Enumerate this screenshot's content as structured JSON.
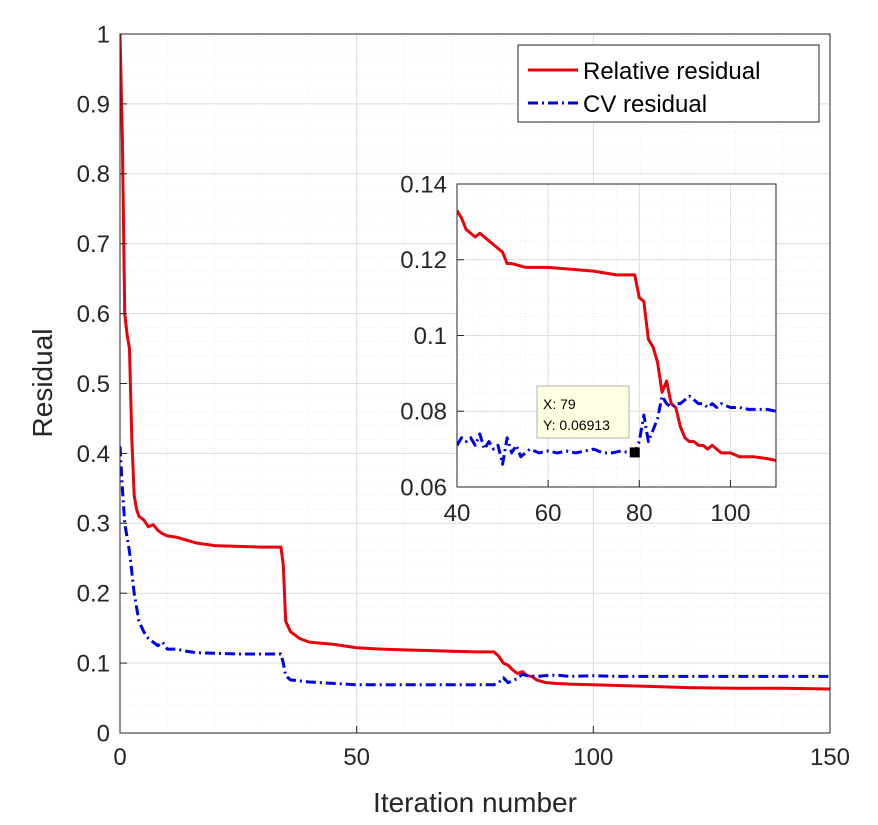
{
  "chart_data": [
    {
      "type": "line",
      "xlabel": "Iteration number",
      "ylabel": "Residual",
      "xlim": [
        0,
        150
      ],
      "ylim": [
        0,
        1
      ],
      "xticks": [
        0,
        50,
        100,
        150
      ],
      "xtick_labels": [
        "0",
        "50",
        "100",
        "150"
      ],
      "yticks": [
        0,
        0.1,
        0.2,
        0.3,
        0.4,
        0.5,
        0.6,
        0.7,
        0.8,
        0.9,
        1
      ],
      "ytick_labels": [
        "0",
        "0.1",
        "0.2",
        "0.3",
        "0.4",
        "0.5",
        "0.6",
        "0.7",
        "0.8",
        "0.9",
        "1"
      ],
      "grid": true,
      "legend": "top-right",
      "series": [
        {
          "name": "Relative residual",
          "color": "#e8000b",
          "style": "solid",
          "x": [
            0,
            0.5,
            1,
            1.5,
            2,
            2.5,
            3,
            3.5,
            4,
            5,
            6,
            7,
            8,
            9,
            10,
            12,
            14,
            16,
            18,
            20,
            25,
            30,
            34,
            34.5,
            35,
            36,
            38,
            40,
            45,
            50,
            55,
            60,
            65,
            70,
            75,
            79,
            80,
            81,
            82,
            83,
            84,
            85,
            86,
            87,
            88,
            89,
            90,
            92,
            95,
            100,
            105,
            110,
            120,
            130,
            140,
            150
          ],
          "y": [
            1.0,
            0.85,
            0.6,
            0.57,
            0.55,
            0.42,
            0.34,
            0.32,
            0.31,
            0.305,
            0.295,
            0.298,
            0.29,
            0.285,
            0.282,
            0.28,
            0.276,
            0.272,
            0.27,
            0.268,
            0.267,
            0.266,
            0.266,
            0.24,
            0.16,
            0.145,
            0.135,
            0.13,
            0.127,
            0.122,
            0.12,
            0.119,
            0.118,
            0.117,
            0.116,
            0.116,
            0.11,
            0.1,
            0.097,
            0.09,
            0.085,
            0.088,
            0.082,
            0.081,
            0.076,
            0.074,
            0.072,
            0.071,
            0.07,
            0.069,
            0.068,
            0.067,
            0.065,
            0.064,
            0.064,
            0.063
          ]
        },
        {
          "name": "CV residual",
          "color": "#0000e6",
          "style": "dashdot",
          "x": [
            0,
            0.5,
            1,
            2,
            3,
            4,
            5,
            6,
            7,
            8,
            9,
            10,
            12,
            14,
            16,
            20,
            25,
            30,
            34,
            34.5,
            35,
            36,
            40,
            45,
            50,
            55,
            60,
            65,
            70,
            75,
            79,
            80,
            81,
            82,
            83,
            84,
            85,
            86,
            88,
            90,
            92,
            95,
            100,
            105,
            110,
            120,
            130,
            140,
            150
          ],
          "y": [
            0.41,
            0.35,
            0.3,
            0.26,
            0.2,
            0.16,
            0.145,
            0.135,
            0.13,
            0.125,
            0.13,
            0.12,
            0.12,
            0.117,
            0.115,
            0.114,
            0.113,
            0.113,
            0.113,
            0.1,
            0.082,
            0.076,
            0.073,
            0.071,
            0.069,
            0.069,
            0.069,
            0.069,
            0.069,
            0.069,
            0.069,
            0.072,
            0.079,
            0.072,
            0.075,
            0.078,
            0.084,
            0.082,
            0.081,
            0.082,
            0.083,
            0.081,
            0.082,
            0.081,
            0.081,
            0.081,
            0.081,
            0.081,
            0.081
          ]
        }
      ]
    },
    {
      "type": "line",
      "title": "",
      "xlim": [
        40,
        110
      ],
      "ylim": [
        0.06,
        0.14
      ],
      "xticks": [
        40,
        60,
        80,
        100
      ],
      "xtick_labels": [
        "40",
        "60",
        "80",
        "100"
      ],
      "yticks": [
        0.06,
        0.08,
        0.1,
        0.12,
        0.14
      ],
      "ytick_labels": [
        "0.06",
        "0.08",
        "0.1",
        "0.12",
        "0.14"
      ],
      "grid": true,
      "series": [
        {
          "name": "Relative residual",
          "color": "#e8000b",
          "style": "solid",
          "x": [
            40,
            41,
            42,
            43,
            44,
            45,
            46,
            47,
            48,
            49,
            50,
            51,
            52,
            55,
            60,
            65,
            70,
            75,
            79,
            80,
            81,
            82,
            83,
            84,
            85,
            86,
            87,
            88,
            89,
            90,
            91,
            92,
            93,
            94,
            95,
            96,
            97,
            98,
            100,
            102,
            105,
            108,
            110
          ],
          "y": [
            0.133,
            0.131,
            0.128,
            0.127,
            0.126,
            0.127,
            0.126,
            0.125,
            0.124,
            0.123,
            0.122,
            0.119,
            0.119,
            0.118,
            0.118,
            0.1175,
            0.117,
            0.116,
            0.116,
            0.11,
            0.109,
            0.099,
            0.097,
            0.093,
            0.085,
            0.088,
            0.082,
            0.081,
            0.076,
            0.073,
            0.072,
            0.072,
            0.071,
            0.071,
            0.07,
            0.071,
            0.07,
            0.069,
            0.069,
            0.068,
            0.068,
            0.0675,
            0.067
          ]
        },
        {
          "name": "CV residual",
          "color": "#0000e6",
          "style": "dashdot",
          "x": [
            40,
            41,
            42,
            43,
            44,
            45,
            46,
            47,
            48,
            49,
            50,
            51,
            52,
            53,
            54,
            55,
            56,
            58,
            60,
            62,
            64,
            66,
            68,
            70,
            72,
            74,
            76,
            78,
            79,
            80,
            81,
            82,
            83,
            84,
            85,
            86,
            87,
            88,
            89,
            90,
            91,
            92,
            93,
            94,
            95,
            96,
            97,
            98,
            100,
            102,
            104,
            106,
            108,
            110
          ],
          "y": [
            0.071,
            0.073,
            0.072,
            0.073,
            0.071,
            0.074,
            0.07,
            0.072,
            0.07,
            0.071,
            0.066,
            0.073,
            0.069,
            0.071,
            0.068,
            0.069,
            0.07,
            0.069,
            0.0695,
            0.069,
            0.0695,
            0.069,
            0.0695,
            0.07,
            0.069,
            0.069,
            0.0695,
            0.069,
            0.06913,
            0.072,
            0.079,
            0.072,
            0.075,
            0.078,
            0.084,
            0.082,
            0.081,
            0.082,
            0.082,
            0.083,
            0.084,
            0.083,
            0.082,
            0.082,
            0.081,
            0.082,
            0.081,
            0.082,
            0.081,
            0.081,
            0.0805,
            0.0805,
            0.0805,
            0.08
          ]
        }
      ],
      "datatip": {
        "x_label": "X: 79",
        "y_label": "Y: 0.06913",
        "x": 79,
        "y": 0.06913
      }
    }
  ]
}
